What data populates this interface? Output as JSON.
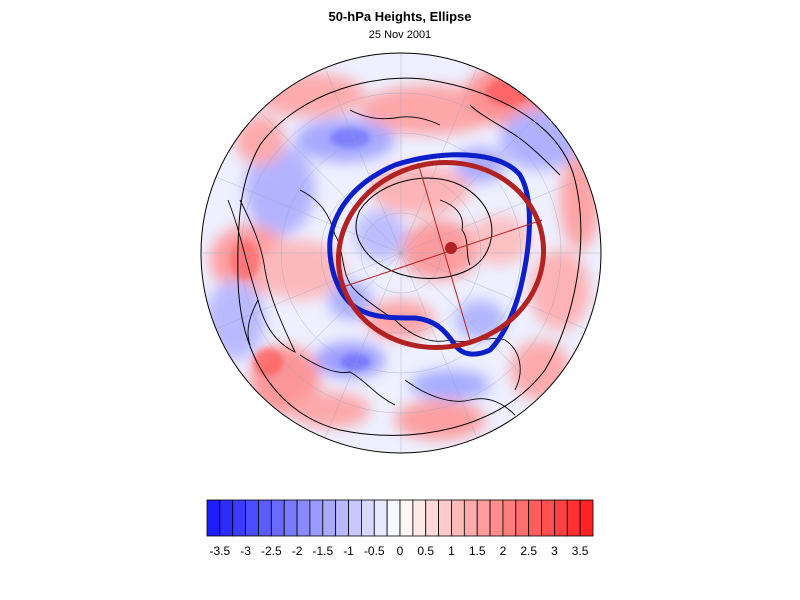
{
  "title": "50-hPa Heights, Ellipse",
  "subtitle": "25 Nov 2001",
  "projection": "north-polar-stereographic",
  "colors": {
    "ellipse_red": "#b22222",
    "contour_blue": "#0d1fc8",
    "negative_max": "#1414ff",
    "positive_max": "#ff1a1a",
    "neutral": "#ffffff"
  },
  "colorbar": {
    "levels": [
      -3.75,
      -3.5,
      -3.25,
      -3,
      -2.75,
      -2.5,
      -2.25,
      -2,
      -1.75,
      -1.5,
      -1.25,
      -1,
      -0.75,
      -0.5,
      -0.25,
      0,
      0.25,
      0.5,
      0.75,
      1,
      1.25,
      1.5,
      1.75,
      2,
      2.25,
      2.5,
      2.75,
      3,
      3.25,
      3.5,
      3.75
    ],
    "tick_labels": [
      "-3.5",
      "-3",
      "-2.5",
      "-2",
      "-1.5",
      "-1",
      "-0.5",
      "0",
      "0.5",
      "1",
      "1.5",
      "2",
      "2.5",
      "3",
      "3.5"
    ],
    "tick_values": [
      -3.5,
      -3,
      -2.5,
      -2,
      -1.5,
      -1,
      -0.5,
      0,
      0.5,
      1,
      1.5,
      2,
      2.5,
      3,
      3.5
    ]
  }
}
